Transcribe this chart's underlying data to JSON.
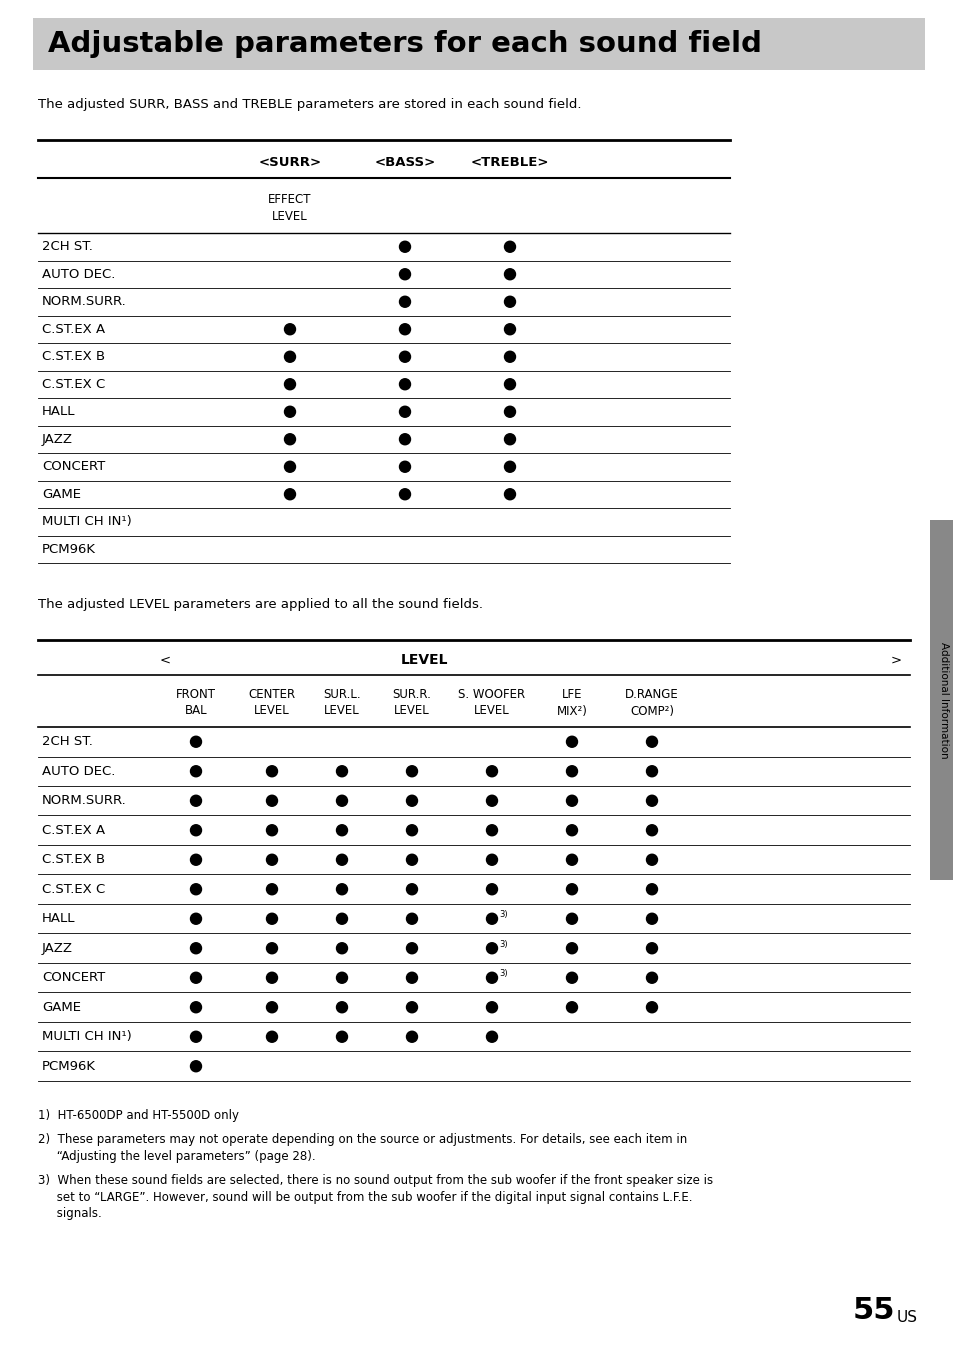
{
  "title": "Adjustable parameters for each sound field",
  "title_bg": "#c8c8c8",
  "page_bg": "#ffffff",
  "subtitle1": "The adjusted SURR, BASS and TREBLE parameters are stored in each sound field.",
  "subtitle2": "The adjusted LEVEL parameters are applied to all the sound fields.",
  "table1": {
    "col_headers": [
      "<SURR>",
      "<BASS>",
      "<TREBLE>"
    ],
    "sub_header": "EFFECT\nLEVEL",
    "rows": [
      {
        "label": "2CH ST.",
        "dots": [
          0,
          1,
          1
        ]
      },
      {
        "label": "AUTO DEC.",
        "dots": [
          0,
          1,
          1
        ]
      },
      {
        "label": "NORM.SURR.",
        "dots": [
          0,
          1,
          1
        ]
      },
      {
        "label": "C.ST.EX A",
        "dots": [
          1,
          1,
          1
        ]
      },
      {
        "label": "C.ST.EX B",
        "dots": [
          1,
          1,
          1
        ]
      },
      {
        "label": "C.ST.EX C",
        "dots": [
          1,
          1,
          1
        ]
      },
      {
        "label": "HALL",
        "dots": [
          1,
          1,
          1
        ]
      },
      {
        "label": "JAZZ",
        "dots": [
          1,
          1,
          1
        ]
      },
      {
        "label": "CONCERT",
        "dots": [
          1,
          1,
          1
        ]
      },
      {
        "label": "GAME",
        "dots": [
          1,
          1,
          1
        ]
      },
      {
        "label": "MULTI CH IN¹)",
        "dots": [
          0,
          0,
          0
        ]
      },
      {
        "label": "PCM96K",
        "dots": [
          0,
          0,
          0
        ]
      }
    ]
  },
  "table2": {
    "col_header_main": "LEVEL",
    "col_headers": [
      "FRONT\nBAL",
      "CENTER\nLEVEL",
      "SUR.L.\nLEVEL",
      "SUR.R.\nLEVEL",
      "S. WOOFER\nLEVEL",
      "LFE\nMIX²)",
      "D.RANGE\nCOMP²)"
    ],
    "rows": [
      {
        "label": "2CH ST.",
        "dots": [
          1,
          0,
          0,
          0,
          0,
          1,
          1
        ]
      },
      {
        "label": "AUTO DEC.",
        "dots": [
          1,
          1,
          1,
          1,
          1,
          1,
          1
        ]
      },
      {
        "label": "NORM.SURR.",
        "dots": [
          1,
          1,
          1,
          1,
          1,
          1,
          1
        ]
      },
      {
        "label": "C.ST.EX A",
        "dots": [
          1,
          1,
          1,
          1,
          1,
          1,
          1
        ]
      },
      {
        "label": "C.ST.EX B",
        "dots": [
          1,
          1,
          1,
          1,
          1,
          1,
          1
        ]
      },
      {
        "label": "C.ST.EX C",
        "dots": [
          1,
          1,
          1,
          1,
          1,
          1,
          1
        ]
      },
      {
        "label": "HALL",
        "dots": [
          1,
          1,
          1,
          1,
          "3",
          1,
          1
        ]
      },
      {
        "label": "JAZZ",
        "dots": [
          1,
          1,
          1,
          1,
          "3",
          1,
          1
        ]
      },
      {
        "label": "CONCERT",
        "dots": [
          1,
          1,
          1,
          1,
          "3",
          1,
          1
        ]
      },
      {
        "label": "GAME",
        "dots": [
          1,
          1,
          1,
          1,
          1,
          1,
          1
        ]
      },
      {
        "label": "MULTI CH IN¹)",
        "dots": [
          1,
          1,
          1,
          1,
          1,
          0,
          0
        ]
      },
      {
        "label": "PCM96K",
        "dots": [
          1,
          0,
          0,
          0,
          0,
          0,
          0
        ]
      }
    ]
  },
  "footnotes": [
    "1)  HT-6500DP and HT-5500D only",
    "2)  These parameters may not operate depending on the source or adjustments. For details, see each item in\n     “Adjusting the level parameters” (page 28).",
    "3)  When these sound fields are selected, there is no sound output from the sub woofer if the front speaker size is\n     set to “LARGE”. However, sound will be output from the sub woofer if the digital input signal contains L.F.E.\n     signals."
  ],
  "side_label": "Additional Information",
  "page_number_big": "55",
  "page_number_small": "US"
}
